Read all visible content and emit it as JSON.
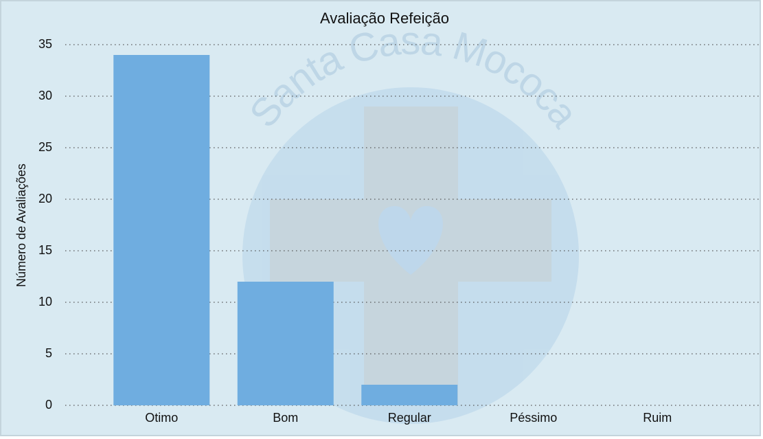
{
  "chart_data": {
    "type": "bar",
    "title": "Avaliação Refeição",
    "y_label": "Número de Avaliações",
    "watermark": "Santa Casa Mococa",
    "categories": [
      "Otimo",
      "Bom",
      "Regular",
      "Péssimo",
      "Ruim"
    ],
    "values": [
      34,
      12,
      2,
      0,
      0
    ],
    "color": "#6fade0",
    "ylim": [
      0,
      35
    ],
    "yticks": [
      0,
      5,
      10,
      15,
      20,
      25,
      30,
      35
    ],
    "grid": true
  }
}
